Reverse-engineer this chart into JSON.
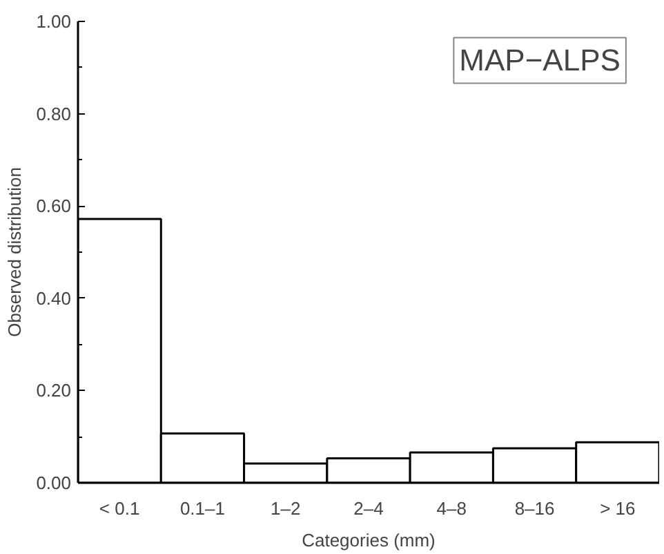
{
  "chart_data": {
    "type": "bar",
    "title": "MAP−ALPS",
    "xlabel": "Categories (mm)",
    "ylabel": "Observed distribution",
    "categories": [
      "< 0.1",
      "0.1–1",
      "1–2",
      "2–4",
      "4–8",
      "8–16",
      "> 16"
    ],
    "values": [
      0.572,
      0.107,
      0.042,
      0.053,
      0.066,
      0.075,
      0.088
    ],
    "color": "#ffffff",
    "ylim": [
      0,
      1
    ],
    "yticks": [
      "0.00",
      {
        "value": 0.1,
        "label": null
      },
      {
        "value": 0.2,
        "label": "0.20"
      },
      {
        "value": 0.3,
        "label": null
      },
      {
        "value": 0.4,
        "label": "0.40"
      },
      {
        "value": 0.5,
        "label": null
      },
      {
        "value": 0.6,
        "label": "0.60"
      },
      {
        "value": 0.7,
        "label": null
      },
      {
        "value": 0.8,
        "label": "0.80"
      },
      {
        "value": 0.9,
        "label": null
      },
      {
        "value": 1,
        "label": "1.00"
      }
    ],
    "grid": false
  }
}
